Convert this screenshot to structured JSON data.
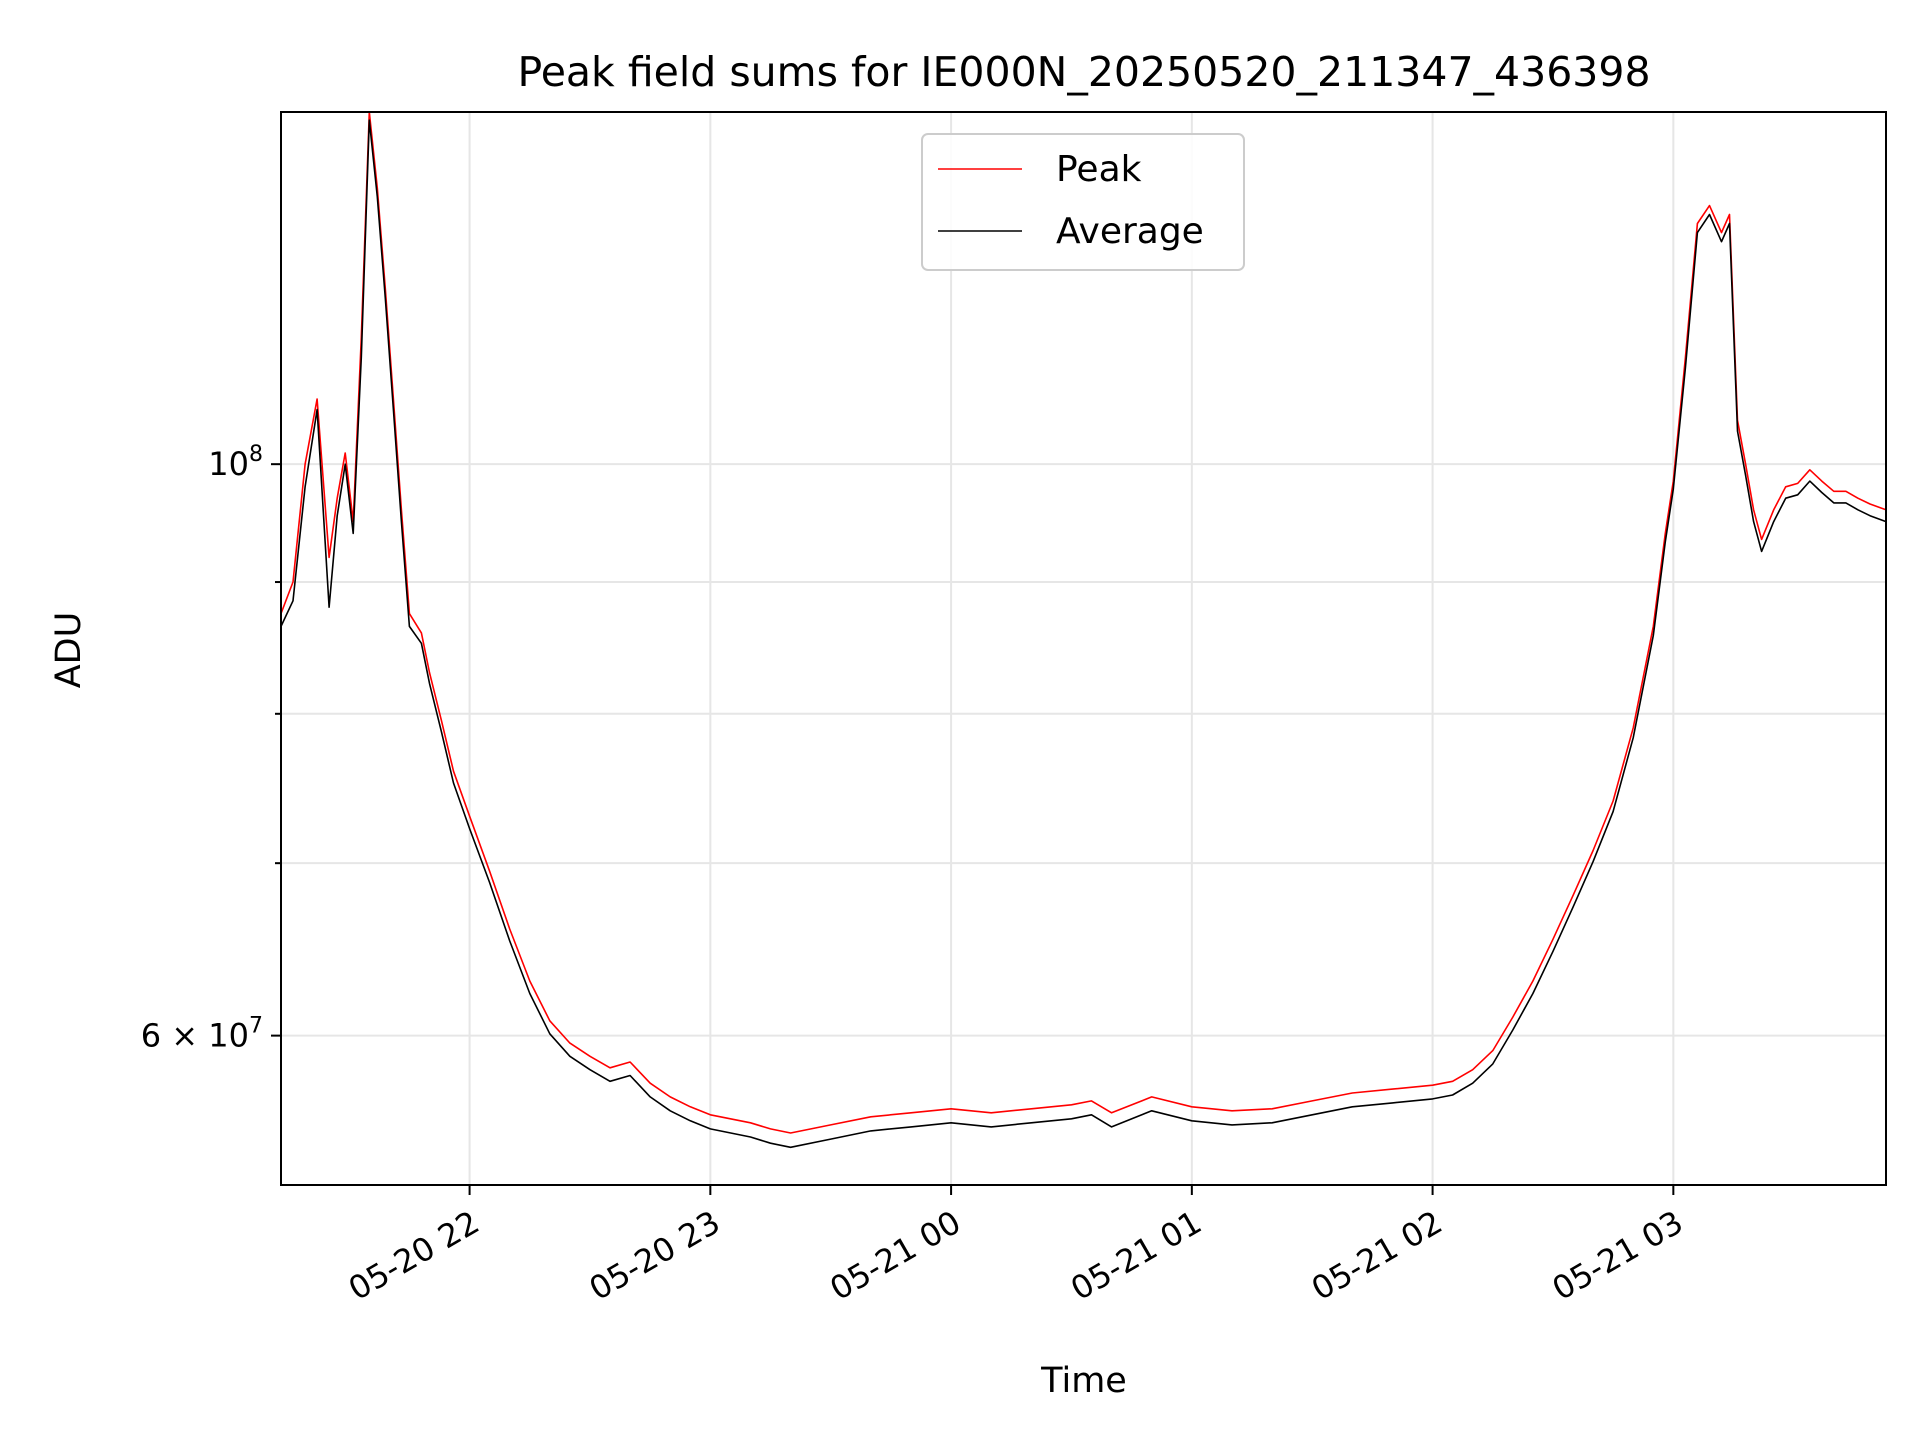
{
  "chart_data": {
    "type": "line",
    "title": "Peak field sums for IE000N_20250520_211347_436398",
    "xlabel": "Time",
    "ylabel": "ADU",
    "y_scale": "log",
    "ylim": [
      52500000,
      137000000
    ],
    "xlim": [
      "2025-05-20 21:13",
      "2025-05-21 03:53"
    ],
    "x_ticks": [
      {
        "value": "2025-05-20 22:00",
        "label": "05-20 22"
      },
      {
        "value": "2025-05-20 23:00",
        "label": "05-20 23"
      },
      {
        "value": "2025-05-21 00:00",
        "label": "05-21 00"
      },
      {
        "value": "2025-05-21 01:00",
        "label": "05-21 01"
      },
      {
        "value": "2025-05-21 02:00",
        "label": "05-21 02"
      },
      {
        "value": "2025-05-21 03:00",
        "label": "05-21 03"
      }
    ],
    "y_ticks": [
      {
        "value": 60000000,
        "label": "6 × 10⁷",
        "base": "6 × 10",
        "exp": "7",
        "major": true
      },
      {
        "value": 70000000,
        "label": "",
        "major": false
      },
      {
        "value": 80000000,
        "label": "",
        "major": false
      },
      {
        "value": 90000000,
        "label": "",
        "major": false
      },
      {
        "value": 100000000,
        "label": "10⁸",
        "base": "10",
        "exp": "8",
        "major": true
      }
    ],
    "grid": true,
    "legend": {
      "placement": "upper center"
    },
    "series": [
      {
        "name": "Peak",
        "color": "#ff0000",
        "x": [
          "2025-05-20 21:13",
          "2025-05-20 21:16",
          "2025-05-20 21:19",
          "2025-05-20 21:22",
          "2025-05-20 21:25",
          "2025-05-20 21:27",
          "2025-05-20 21:29",
          "2025-05-20 21:31",
          "2025-05-20 21:33",
          "2025-05-20 21:35",
          "2025-05-20 21:37",
          "2025-05-20 21:39",
          "2025-05-20 21:41",
          "2025-05-20 21:43",
          "2025-05-20 21:45",
          "2025-05-20 21:48",
          "2025-05-20 21:50",
          "2025-05-20 21:53",
          "2025-05-20 21:56",
          "2025-05-20 22:00",
          "2025-05-20 22:05",
          "2025-05-20 22:10",
          "2025-05-20 22:15",
          "2025-05-20 22:20",
          "2025-05-20 22:25",
          "2025-05-20 22:30",
          "2025-05-20 22:35",
          "2025-05-20 22:40",
          "2025-05-20 22:45",
          "2025-05-20 22:50",
          "2025-05-20 22:55",
          "2025-05-20 23:00",
          "2025-05-20 23:10",
          "2025-05-20 23:15",
          "2025-05-20 23:20",
          "2025-05-20 23:30",
          "2025-05-20 23:40",
          "2025-05-20 23:50",
          "2025-05-21 00:00",
          "2025-05-21 00:10",
          "2025-05-21 00:20",
          "2025-05-21 00:30",
          "2025-05-21 00:35",
          "2025-05-21 00:40",
          "2025-05-21 00:50",
          "2025-05-21 01:00",
          "2025-05-21 01:10",
          "2025-05-21 01:20",
          "2025-05-21 01:30",
          "2025-05-21 01:40",
          "2025-05-21 01:50",
          "2025-05-21 02:00",
          "2025-05-21 02:05",
          "2025-05-21 02:10",
          "2025-05-21 02:15",
          "2025-05-21 02:20",
          "2025-05-21 02:25",
          "2025-05-21 02:30",
          "2025-05-21 02:35",
          "2025-05-21 02:40",
          "2025-05-21 02:45",
          "2025-05-21 02:50",
          "2025-05-21 02:55",
          "2025-05-21 02:58",
          "2025-05-21 03:00",
          "2025-05-21 03:03",
          "2025-05-21 03:06",
          "2025-05-21 03:09",
          "2025-05-21 03:12",
          "2025-05-21 03:14",
          "2025-05-21 03:16",
          "2025-05-21 03:18",
          "2025-05-21 03:20",
          "2025-05-21 03:22",
          "2025-05-21 03:25",
          "2025-05-21 03:28",
          "2025-05-21 03:31",
          "2025-05-21 03:34",
          "2025-05-21 03:37",
          "2025-05-21 03:40",
          "2025-05-21 03:43",
          "2025-05-21 03:46",
          "2025-05-21 03:49",
          "2025-05-21 03:53"
        ],
        "y": [
          87500000,
          90000000,
          100000000,
          106000000,
          92000000,
          97000000,
          101000000,
          95000000,
          112000000,
          137000000,
          128000000,
          117000000,
          106000000,
          96000000,
          87500000,
          86000000,
          83000000,
          79500000,
          76000000,
          73000000,
          69500000,
          66000000,
          63000000,
          60800000,
          59600000,
          58900000,
          58300000,
          58600000,
          57500000,
          56800000,
          56300000,
          55900000,
          55500000,
          55200000,
          55000000,
          55400000,
          55800000,
          56000000,
          56200000,
          56000000,
          56200000,
          56400000,
          56600000,
          56000000,
          56800000,
          56300000,
          56100000,
          56200000,
          56600000,
          57000000,
          57200000,
          57400000,
          57600000,
          58200000,
          59200000,
          61000000,
          63000000,
          65400000,
          68000000,
          70800000,
          74000000,
          79000000,
          86500000,
          94000000,
          98500000,
          110000000,
          124000000,
          126000000,
          123000000,
          125000000,
          104000000,
          100000000,
          96000000,
          93500000,
          96000000,
          98000000,
          98300000,
          99500000,
          98500000,
          97600000,
          97600000,
          97000000,
          96500000,
          96000000
        ]
      },
      {
        "name": "Average",
        "color": "#000000",
        "x": [
          "2025-05-20 21:13",
          "2025-05-20 21:16",
          "2025-05-20 21:19",
          "2025-05-20 21:22",
          "2025-05-20 21:25",
          "2025-05-20 21:27",
          "2025-05-20 21:29",
          "2025-05-20 21:31",
          "2025-05-20 21:33",
          "2025-05-20 21:35",
          "2025-05-20 21:37",
          "2025-05-20 21:39",
          "2025-05-20 21:41",
          "2025-05-20 21:43",
          "2025-05-20 21:45",
          "2025-05-20 21:48",
          "2025-05-20 21:50",
          "2025-05-20 21:53",
          "2025-05-20 21:56",
          "2025-05-20 22:00",
          "2025-05-20 22:05",
          "2025-05-20 22:10",
          "2025-05-20 22:15",
          "2025-05-20 22:20",
          "2025-05-20 22:25",
          "2025-05-20 22:30",
          "2025-05-20 22:35",
          "2025-05-20 22:40",
          "2025-05-20 22:45",
          "2025-05-20 22:50",
          "2025-05-20 22:55",
          "2025-05-20 23:00",
          "2025-05-20 23:10",
          "2025-05-20 23:15",
          "2025-05-20 23:20",
          "2025-05-20 23:30",
          "2025-05-20 23:40",
          "2025-05-20 23:50",
          "2025-05-21 00:00",
          "2025-05-21 00:10",
          "2025-05-21 00:20",
          "2025-05-21 00:30",
          "2025-05-21 00:35",
          "2025-05-21 00:40",
          "2025-05-21 00:50",
          "2025-05-21 01:00",
          "2025-05-21 01:10",
          "2025-05-21 01:20",
          "2025-05-21 01:30",
          "2025-05-21 01:40",
          "2025-05-21 01:50",
          "2025-05-21 02:00",
          "2025-05-21 02:05",
          "2025-05-21 02:10",
          "2025-05-21 02:15",
          "2025-05-21 02:20",
          "2025-05-21 02:25",
          "2025-05-21 02:30",
          "2025-05-21 02:35",
          "2025-05-21 02:40",
          "2025-05-21 02:45",
          "2025-05-21 02:50",
          "2025-05-21 02:55",
          "2025-05-21 02:58",
          "2025-05-21 03:00",
          "2025-05-21 03:03",
          "2025-05-21 03:06",
          "2025-05-21 03:09",
          "2025-05-21 03:12",
          "2025-05-21 03:14",
          "2025-05-21 03:16",
          "2025-05-21 03:18",
          "2025-05-21 03:20",
          "2025-05-21 03:22",
          "2025-05-21 03:25",
          "2025-05-21 03:28",
          "2025-05-21 03:31",
          "2025-05-21 03:34",
          "2025-05-21 03:37",
          "2025-05-21 03:40",
          "2025-05-21 03:43",
          "2025-05-21 03:46",
          "2025-05-21 03:49",
          "2025-05-21 03:53"
        ],
        "y": [
          86500000,
          88500000,
          98000000,
          105000000,
          88000000,
          95500000,
          100000000,
          94000000,
          110000000,
          136000000,
          127000000,
          116000000,
          105000000,
          95000000,
          86500000,
          85200000,
          82200000,
          78700000,
          75200000,
          72200000,
          68800000,
          65300000,
          62300000,
          60100000,
          58900000,
          58200000,
          57600000,
          57900000,
          56800000,
          56100000,
          55600000,
          55200000,
          54800000,
          54500000,
          54300000,
          54700000,
          55100000,
          55300000,
          55500000,
          55300000,
          55500000,
          55700000,
          55900000,
          55300000,
          56100000,
          55600000,
          55400000,
          55500000,
          55900000,
          56300000,
          56500000,
          56700000,
          56900000,
          57500000,
          58500000,
          60300000,
          62300000,
          64700000,
          67300000,
          70100000,
          73300000,
          78300000,
          85800000,
          93300000,
          97800000,
          109000000,
          123000000,
          125000000,
          122000000,
          124000000,
          103000000,
          99000000,
          95000000,
          92500000,
          95000000,
          97000000,
          97300000,
          98500000,
          97500000,
          96600000,
          96600000,
          96000000,
          95500000,
          95000000
        ]
      }
    ]
  }
}
